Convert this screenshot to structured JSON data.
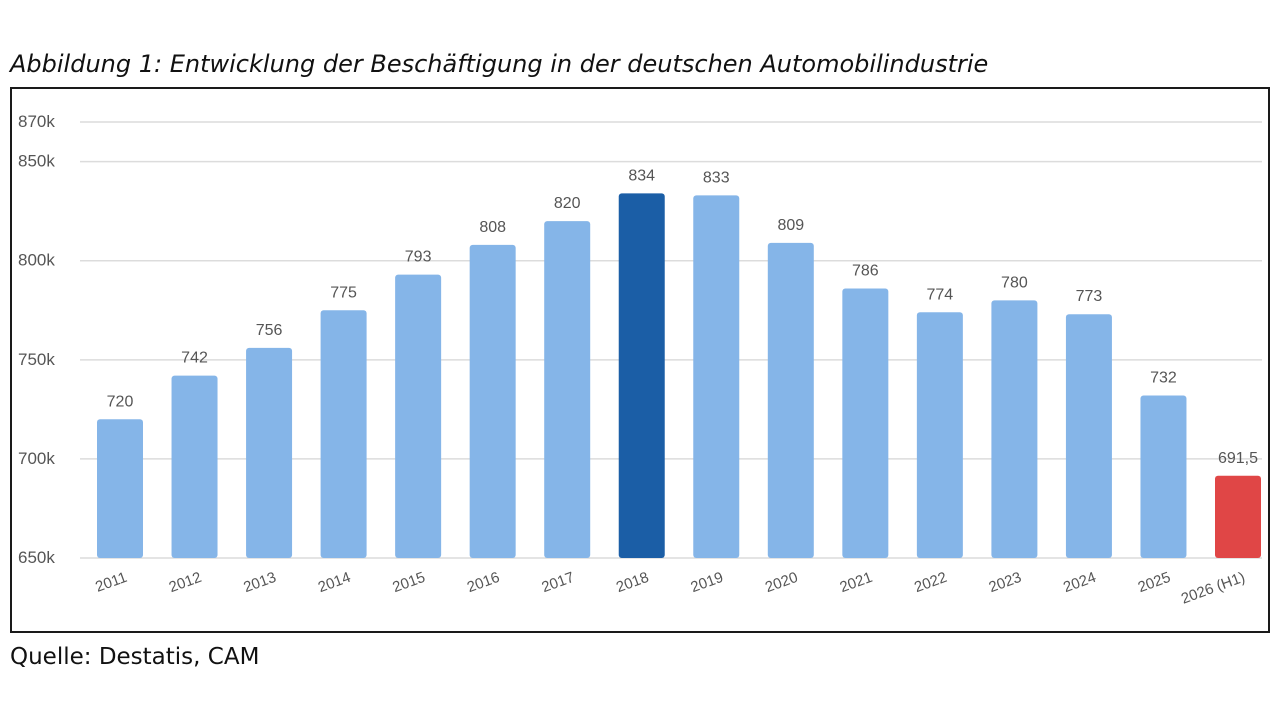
{
  "caption": "Abbildung 1: Entwicklung der Beschäftigung in der deutschen Automobilindustrie",
  "source": "Quelle: Destatis, CAM",
  "chart_data": {
    "type": "bar",
    "categories": [
      "2011",
      "2012",
      "2013",
      "2014",
      "2015",
      "2016",
      "2017",
      "2018",
      "2019",
      "2020",
      "2021",
      "2022",
      "2023",
      "2024",
      "2025",
      "2026 (H1)"
    ],
    "values": [
      720,
      742,
      756,
      775,
      793,
      808,
      820,
      834,
      833,
      809,
      786,
      774,
      780,
      773,
      732,
      691.5
    ],
    "data_labels": [
      "720",
      "742",
      "756",
      "775",
      "793",
      "808",
      "820",
      "834",
      "833",
      "809",
      "786",
      "774",
      "780",
      "773",
      "732",
      "691,5"
    ],
    "value_unit": "k",
    "ylim": [
      650,
      870
    ],
    "yticks": [
      {
        "value": 650,
        "label": "650k"
      },
      {
        "value": 700,
        "label": "700k"
      },
      {
        "value": 750,
        "label": "750k"
      },
      {
        "value": 800,
        "label": "800k"
      },
      {
        "value": 850,
        "label": "850k"
      },
      {
        "value": 870,
        "label": "870k"
      }
    ],
    "grid": true,
    "colors": {
      "default": "#85b5e8",
      "highlight_max": "#1b5ea6",
      "highlight_latest": "#e04646",
      "grid": "#dcdcdc",
      "label": "#555555"
    },
    "highlight_index": {
      "2018": "highlight_max",
      "2026 (H1)": "highlight_latest"
    }
  }
}
